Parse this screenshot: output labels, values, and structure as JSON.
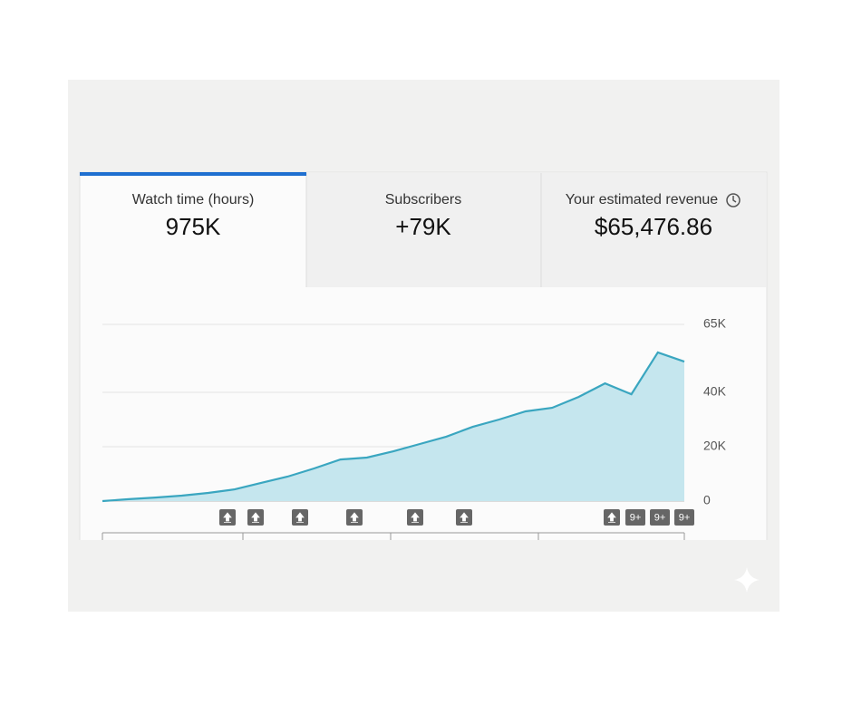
{
  "tabs": [
    {
      "label": "Watch time (hours)",
      "value": "975K"
    },
    {
      "label": "Subscribers",
      "value": "+79K"
    },
    {
      "label": "Your estimated revenue",
      "value": "$65,476.86"
    }
  ],
  "chart_data": {
    "type": "area",
    "categories": [
      null,
      null,
      null,
      null,
      null,
      null,
      null,
      null,
      null,
      null,
      null,
      null,
      null,
      null,
      null,
      null,
      null,
      null,
      null,
      null,
      null,
      null,
      null
    ],
    "values": [
      0,
      700,
      1300,
      2000,
      3000,
      4300,
      6700,
      9000,
      12000,
      15300,
      16000,
      18300,
      21000,
      23700,
      27300,
      30000,
      33000,
      34300,
      38300,
      43300,
      39300,
      54700,
      51300
    ],
    "color": "#3aa6c0",
    "ylim": [
      0,
      65000
    ],
    "yticks": [
      0,
      {
        "value": 20000,
        "label": "20K"
      },
      {
        "value": 40000,
        "label": "40K"
      },
      {
        "value": 65000,
        "label": "65K"
      }
    ],
    "grid": true,
    "markers": [
      "9+",
      "9+",
      "9+"
    ]
  }
}
